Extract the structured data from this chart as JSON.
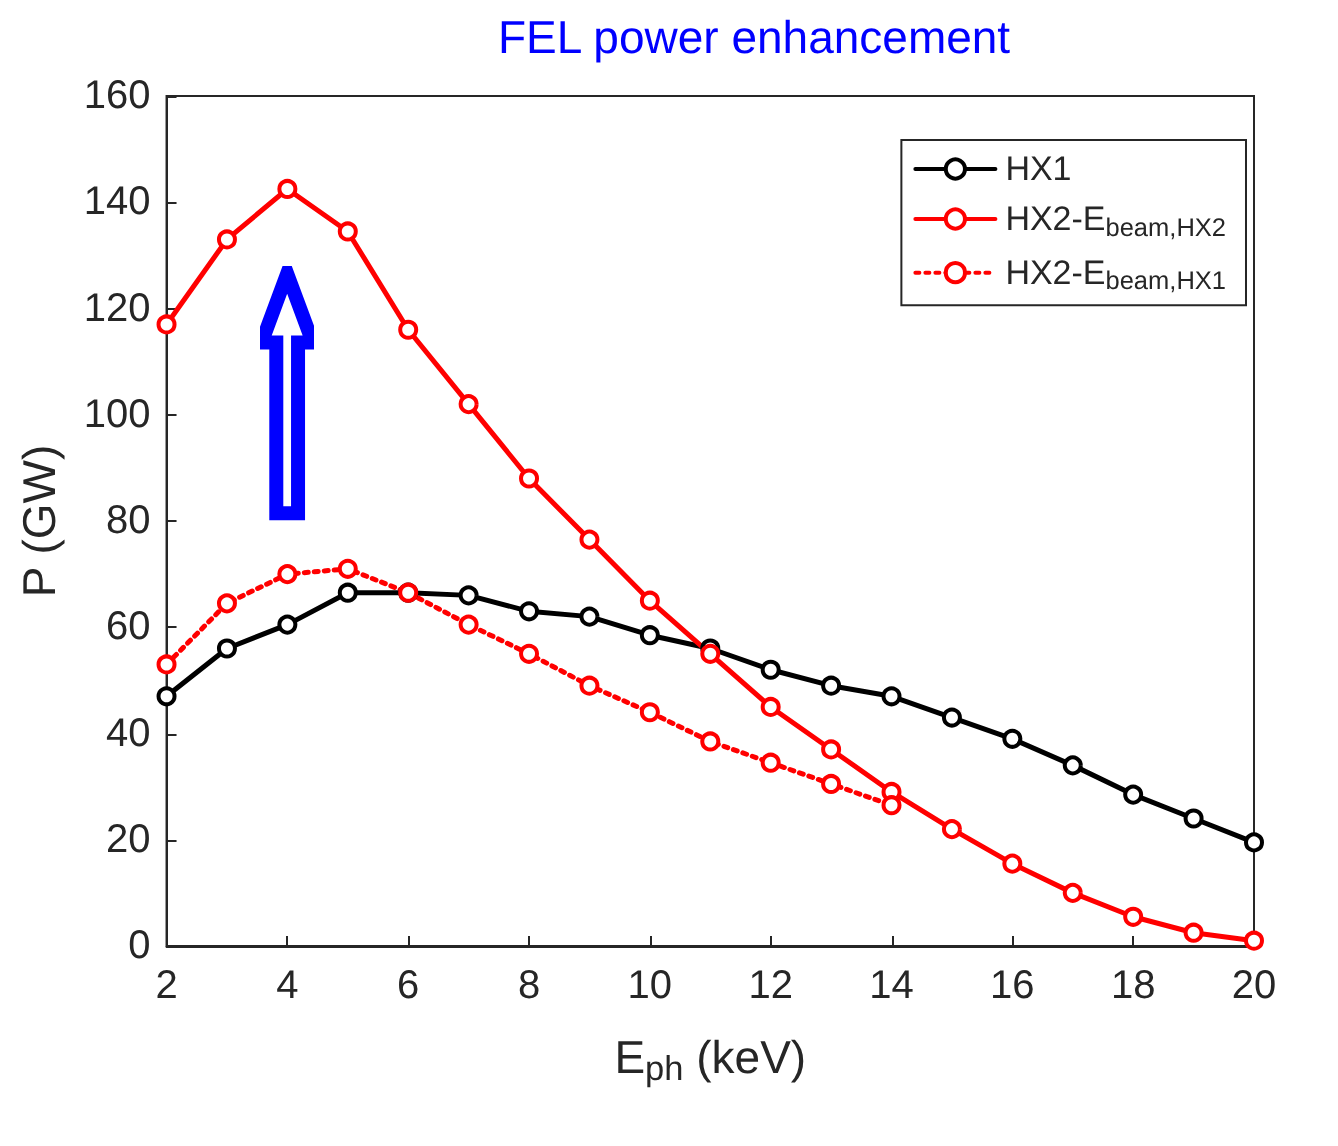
{
  "chart_data": {
    "type": "line",
    "title": "FEL power enhancement",
    "xlabel": "E$_{ph}$ (keV)",
    "ylabel": "P (GW)",
    "xlim": [
      2,
      20
    ],
    "xticks": [
      2,
      4,
      6,
      8,
      10,
      12,
      14,
      16,
      18,
      20
    ],
    "ylim": [
      0,
      160
    ],
    "yticks": [
      0,
      20,
      40,
      60,
      80,
      100,
      120,
      140,
      160
    ],
    "x": [
      2,
      3,
      4,
      5,
      6,
      7,
      8,
      9,
      10,
      11,
      12,
      13,
      14,
      15,
      16,
      17,
      18,
      19,
      20
    ],
    "marker": "circle",
    "legend": "top right",
    "grid": false,
    "series": [
      {
        "name": "HX1",
        "color": "#000000",
        "line_style": "solid",
        "values": [
          47,
          56,
          60.5,
          66.5,
          66.5,
          66,
          63,
          62,
          58.5,
          56,
          52,
          49,
          47,
          43,
          39,
          34,
          28.5,
          24,
          19.5
        ]
      },
      {
        "name": "HX2-E$_{beam,HX2}$",
        "color": "#ff0000",
        "line_style": "solid",
        "values": [
          117,
          133,
          142.5,
          134.5,
          116,
          102,
          88,
          76.5,
          65,
          55,
          45,
          37,
          29,
          22,
          15.5,
          10,
          5.5,
          2.5,
          1
        ]
      },
      {
        "name": "HX2-E$_{beam,HX1}$",
        "color": "#ff0000",
        "line_style": "dotted",
        "values": [
          53,
          64.5,
          70,
          71,
          66.5,
          60.5,
          55,
          49,
          44,
          38.5,
          34.5,
          30.5,
          26.5,
          null,
          null,
          null,
          null,
          null,
          null
        ]
      }
    ]
  }
}
